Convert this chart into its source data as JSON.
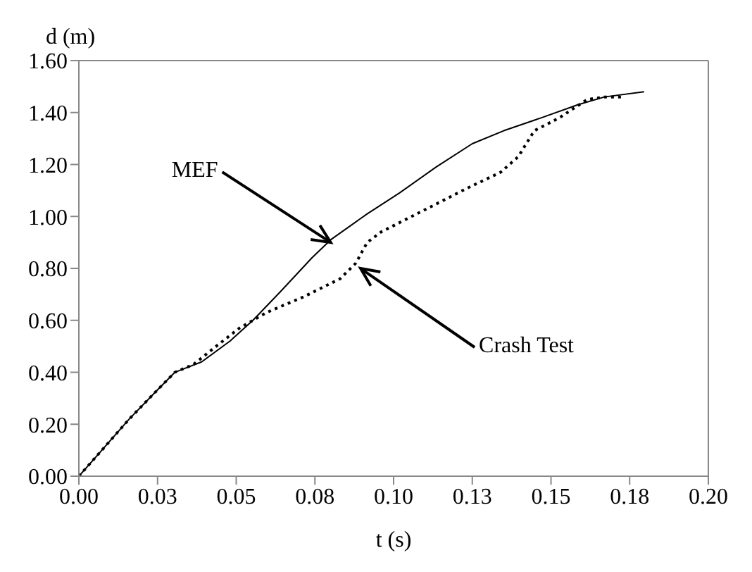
{
  "chart_data": {
    "type": "line",
    "xlabel": "t (s)",
    "ylabel": "d (m)",
    "xlim": [
      0,
      0.2
    ],
    "ylim": [
      0,
      1.6
    ],
    "xticks": [
      {
        "value": 0,
        "label": "0.00"
      },
      {
        "value": 0.025,
        "label": "0.03"
      },
      {
        "value": 0.05,
        "label": "0.05"
      },
      {
        "value": 0.075,
        "label": "0.08"
      },
      {
        "value": 0.1,
        "label": "0.10"
      },
      {
        "value": 0.125,
        "label": "0.13"
      },
      {
        "value": 0.15,
        "label": "0.15"
      },
      {
        "value": 0.175,
        "label": "0.18"
      },
      {
        "value": 0.2,
        "label": "0.20"
      }
    ],
    "yticks": [
      {
        "value": 0,
        "label": "0.00"
      },
      {
        "value": 0.2,
        "label": "0.20"
      },
      {
        "value": 0.4,
        "label": "0.40"
      },
      {
        "value": 0.6,
        "label": "0.60"
      },
      {
        "value": 0.8,
        "label": "0.80"
      },
      {
        "value": 1.0,
        "label": "1.00"
      },
      {
        "value": 1.2,
        "label": "1.20"
      },
      {
        "value": 1.4,
        "label": "1.40"
      },
      {
        "value": 1.6,
        "label": "1.60"
      }
    ],
    "legend": false,
    "marker": "none",
    "series": [
      {
        "color": "#000000",
        "line_style": "solid",
        "x": [
          0,
          0.0073,
          0.016,
          0.024,
          0.0305,
          0.039,
          0.048,
          0.0553,
          0.064,
          0.074,
          0.08,
          0.0916,
          0.1018,
          0.1135,
          0.125,
          0.135,
          0.147,
          0.1585,
          0.167,
          0.1796
        ],
        "values": [
          0,
          0.1,
          0.22,
          0.32,
          0.4,
          0.44,
          0.52,
          0.6,
          0.71,
          0.84,
          0.91,
          1.01,
          1.09,
          1.19,
          1.28,
          1.33,
          1.38,
          1.43,
          1.46,
          1.48
        ]
      },
      {
        "color": "#000000",
        "line_style": "dotted",
        "x": [
          0,
          0.0073,
          0.016,
          0.024,
          0.0305,
          0.0364,
          0.0436,
          0.051,
          0.0596,
          0.0713,
          0.083,
          0.088,
          0.0916,
          0.096,
          0.109,
          0.1236,
          0.134,
          0.1396,
          0.1447,
          0.1527,
          0.1615,
          0.167,
          0.173
        ],
        "values": [
          0,
          0.1,
          0.22,
          0.32,
          0.4,
          0.43,
          0.5,
          0.57,
          0.63,
          0.69,
          0.76,
          0.82,
          0.9,
          0.94,
          1.02,
          1.11,
          1.17,
          1.23,
          1.33,
          1.38,
          1.45,
          1.46,
          1.46
        ]
      }
    ],
    "annotations": [
      {
        "text": "MEF",
        "x": 0.08,
        "y": 0.9
      },
      {
        "text": "Crash Test",
        "x": 0.0895,
        "y": 0.8
      }
    ]
  }
}
